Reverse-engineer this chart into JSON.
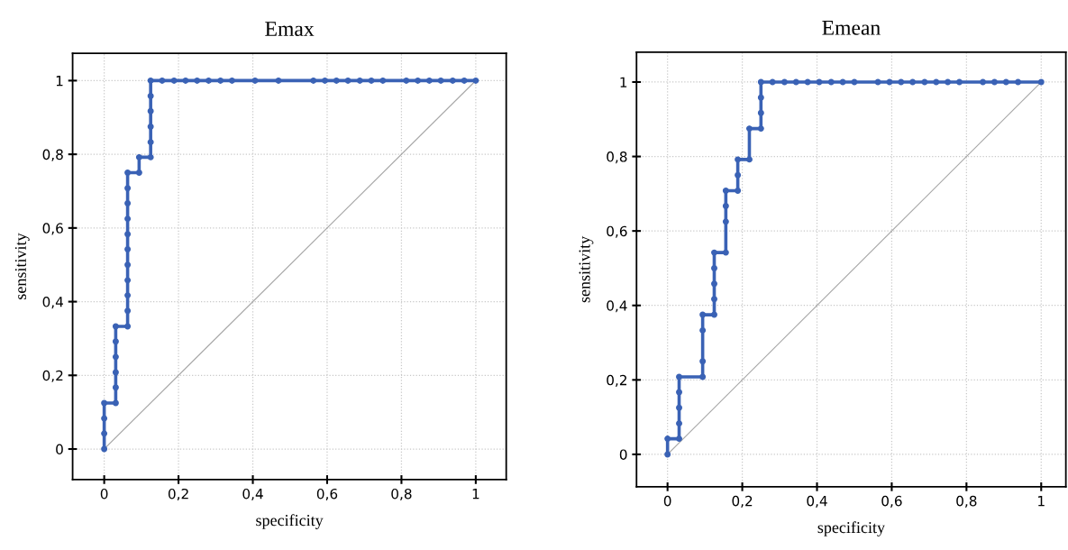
{
  "chart_data": [
    {
      "type": "line",
      "title": "Emax",
      "xlabel": "specificity",
      "ylabel": "sensitivity",
      "xlim": [
        -0.085,
        1.082
      ],
      "ylim": [
        -0.083,
        1.074
      ],
      "xticks": [
        0,
        {
          "value": 0.2,
          "label": "0,2"
        },
        {
          "value": 0.4,
          "label": "0,4"
        },
        {
          "value": 0.6,
          "label": "0,6"
        },
        {
          "value": 0.8,
          "label": "0,8"
        },
        1
      ],
      "yticks": [
        0,
        {
          "value": 0.2,
          "label": "0,2"
        },
        {
          "value": 0.4,
          "label": "0,4"
        },
        {
          "value": 0.6,
          "label": "0,6"
        },
        {
          "value": 0.8,
          "label": "0,8"
        },
        1
      ],
      "grid": true,
      "legend": false,
      "series": [
        {
          "color": "#a6a6a6",
          "marker": "none",
          "x": [
            0,
            1
          ],
          "values": [
            0,
            1
          ]
        },
        {
          "color": "#3a62b5",
          "marker": "circle",
          "x": [
            0,
            0,
            0,
            0,
            0.031,
            0.031,
            0.031,
            0.031,
            0.031,
            0.031,
            0.063,
            0.063,
            0.063,
            0.063,
            0.063,
            0.063,
            0.063,
            0.063,
            0.063,
            0.063,
            0.063,
            0.094,
            0.094,
            0.125,
            0.125,
            0.125,
            0.125,
            0.125,
            0.125,
            0.156,
            0.188,
            0.219,
            0.25,
            0.281,
            0.313,
            0.344,
            0.406,
            0.469,
            0.563,
            0.594,
            0.625,
            0.656,
            0.688,
            0.719,
            0.75,
            0.813,
            0.844,
            0.875,
            0.906,
            0.938,
            0.969,
            1
          ],
          "values": [
            0,
            0.042,
            0.083,
            0.125,
            0.125,
            0.167,
            0.208,
            0.25,
            0.292,
            0.333,
            0.333,
            0.375,
            0.417,
            0.458,
            0.5,
            0.542,
            0.583,
            0.625,
            0.667,
            0.708,
            0.75,
            0.75,
            0.792,
            0.792,
            0.833,
            0.875,
            0.917,
            0.958,
            1,
            1,
            1,
            1,
            1,
            1,
            1,
            1,
            1,
            1,
            1,
            1,
            1,
            1,
            1,
            1,
            1,
            1,
            1,
            1,
            1,
            1,
            1,
            1
          ]
        }
      ]
    },
    {
      "type": "line",
      "title": "Emean",
      "xlabel": "specificity",
      "ylabel": "sensitivity",
      "xlim": [
        -0.083,
        1.066
      ],
      "ylim": [
        -0.087,
        1.08
      ],
      "xticks": [
        0,
        {
          "value": 0.2,
          "label": "0,2"
        },
        {
          "value": 0.4,
          "label": "0,4"
        },
        {
          "value": 0.6,
          "label": "0,6"
        },
        {
          "value": 0.8,
          "label": "0,8"
        },
        1
      ],
      "yticks": [
        0,
        {
          "value": 0.2,
          "label": "0,2"
        },
        {
          "value": 0.4,
          "label": "0,4"
        },
        {
          "value": 0.6,
          "label": "0,6"
        },
        {
          "value": 0.8,
          "label": "0,8"
        },
        1
      ],
      "grid": true,
      "legend": false,
      "series": [
        {
          "color": "#a6a6a6",
          "marker": "none",
          "x": [
            0,
            1
          ],
          "values": [
            0,
            1
          ]
        },
        {
          "color": "#3a62b5",
          "marker": "circle",
          "x": [
            0,
            0,
            0.031,
            0.031,
            0.031,
            0.031,
            0.031,
            0.094,
            0.094,
            0.094,
            0.094,
            0.125,
            0.125,
            0.125,
            0.125,
            0.125,
            0.156,
            0.156,
            0.156,
            0.156,
            0.188,
            0.188,
            0.188,
            0.219,
            0.219,
            0.25,
            0.25,
            0.25,
            0.25,
            0.281,
            0.313,
            0.344,
            0.375,
            0.406,
            0.438,
            0.469,
            0.5,
            0.563,
            0.594,
            0.625,
            0.656,
            0.688,
            0.719,
            0.75,
            0.781,
            0.844,
            0.875,
            0.906,
            0.938,
            1
          ],
          "values": [
            0,
            0.042,
            0.042,
            0.083,
            0.125,
            0.167,
            0.208,
            0.208,
            0.25,
            0.333,
            0.375,
            0.375,
            0.417,
            0.458,
            0.5,
            0.542,
            0.542,
            0.625,
            0.667,
            0.708,
            0.708,
            0.75,
            0.792,
            0.792,
            0.875,
            0.875,
            0.917,
            0.958,
            1,
            1,
            1,
            1,
            1,
            1,
            1,
            1,
            1,
            1,
            1,
            1,
            1,
            1,
            1,
            1,
            1,
            1,
            1,
            1,
            1,
            1
          ]
        }
      ]
    }
  ]
}
